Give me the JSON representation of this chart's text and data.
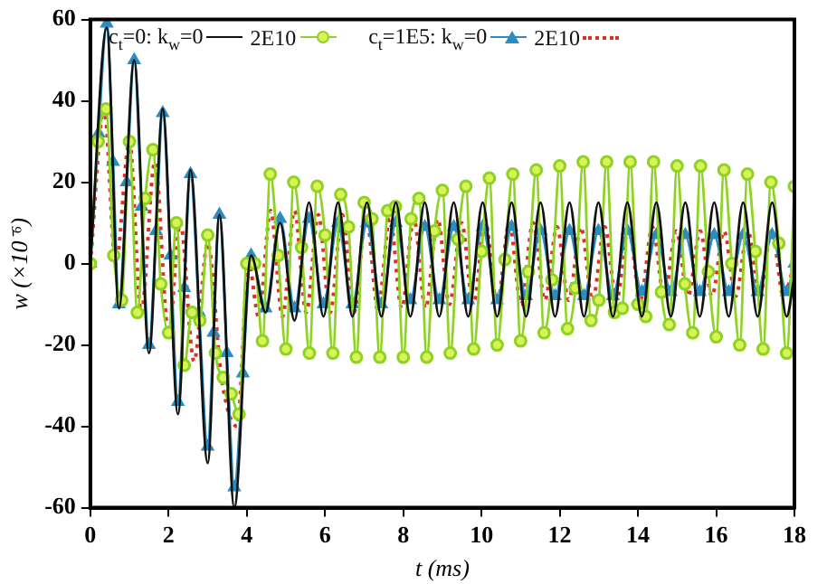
{
  "chart_data": {
    "type": "line",
    "xlabel": "t (ms)",
    "ylabel": "w (×10⁻⁶)",
    "xlim": [
      0,
      18
    ],
    "xticks": [
      0,
      2,
      4,
      6,
      8,
      10,
      12,
      14,
      16,
      18
    ],
    "ylim": [
      -60,
      60
    ],
    "yticks": [
      -60,
      -40,
      -20,
      0,
      20,
      40,
      60
    ],
    "grid": false,
    "legend": "top",
    "series": [
      {
        "name": "c$_{t}$=0: k$_{w}$=0",
        "color": "#111111",
        "marker": "none",
        "line_style": "solid",
        "x": [
          0,
          0.42,
          0.73,
          1.12,
          1.5,
          1.85,
          2.24,
          2.56,
          3.0,
          3.3,
          3.68,
          4.11,
          4.48,
          4.85,
          5.22,
          5.59,
          5.96,
          6.33,
          6.7,
          7.07,
          7.44,
          7.81,
          8.18,
          8.55,
          8.92,
          9.29,
          9.66,
          10.03,
          10.4,
          10.77,
          11.14,
          11.51,
          11.88,
          12.25,
          12.62,
          12.99,
          13.36,
          13.73,
          14.1,
          14.47,
          14.84,
          15.21,
          15.58,
          15.95,
          16.32,
          16.69,
          17.06,
          17.43,
          17.8,
          18
        ],
        "values": [
          0,
          58,
          -11,
          50,
          -22,
          38,
          -37,
          23,
          -49,
          12,
          -60,
          2,
          -12,
          10,
          -14,
          15,
          -13,
          15,
          -13,
          15,
          -13,
          15,
          -13,
          15,
          -13,
          15,
          -13,
          15,
          -13,
          15,
          -13,
          15,
          -13,
          15,
          -13,
          15,
          -13,
          15,
          -13,
          15,
          -13,
          15,
          -13,
          15,
          -13,
          15,
          -13,
          15,
          -13,
          -3
        ]
      },
      {
        "name": "2E10",
        "color": "#8ed321",
        "marker": "circle",
        "line_style": "solid",
        "x": [
          0,
          0.2,
          0.4,
          0.6,
          0.8,
          1.0,
          1.2,
          1.4,
          1.6,
          1.8,
          2.0,
          2.2,
          2.4,
          2.6,
          2.8,
          3.0,
          3.2,
          3.4,
          3.6,
          3.8,
          4.0,
          4.2,
          4.4,
          4.6,
          4.8,
          5.0,
          5.2,
          5.4,
          5.6,
          5.8,
          6.0,
          6.2,
          6.4,
          6.6,
          6.8,
          7.0,
          7.2,
          7.4,
          7.6,
          7.8,
          8.0,
          8.2,
          8.4,
          8.6,
          8.8,
          9.0,
          9.2,
          9.4,
          9.6,
          9.8,
          10.0,
          10.2,
          10.4,
          10.6,
          10.8,
          11.0,
          11.2,
          11.4,
          11.6,
          11.8,
          12.0,
          12.2,
          12.4,
          12.6,
          12.8,
          13.0,
          13.2,
          13.4,
          13.6,
          13.8,
          14.0,
          14.2,
          14.4,
          14.6,
          14.8,
          15.0,
          15.2,
          15.4,
          15.6,
          15.8,
          16.0,
          16.2,
          16.4,
          16.6,
          16.8,
          17.0,
          17.2,
          17.4,
          17.6,
          17.8,
          18.0
        ],
        "values": [
          0,
          30,
          38,
          2,
          -9,
          30,
          -12,
          16,
          28,
          -5,
          -17,
          10,
          -25,
          -12,
          -14,
          7,
          -22,
          -28,
          -32,
          -37,
          0,
          0,
          -19,
          22,
          2,
          -21,
          20,
          4,
          -22,
          19,
          7,
          -22,
          17,
          9,
          -23,
          15,
          11,
          -23,
          13,
          14,
          -23,
          11,
          16,
          -23,
          8,
          18,
          -22,
          6,
          19,
          -21,
          3,
          21,
          -20,
          1,
          22,
          -19,
          -2,
          23,
          -17,
          -4,
          24,
          -16,
          -6,
          25,
          -14,
          -9,
          25,
          -12,
          -11,
          25,
          -10,
          -13,
          25,
          -7,
          -15,
          24,
          -5,
          -17,
          24,
          -2,
          -18,
          23,
          0,
          -20,
          22,
          3,
          -21,
          20,
          5,
          -22,
          19
        ]
      },
      {
        "name": "c$_{t}$=1E5: k$_{w}$=0",
        "color": "#2a8cc0",
        "marker": "triangle",
        "line_style": "solid",
        "x": [
          0,
          0.21,
          0.42,
          0.58,
          0.73,
          0.93,
          1.12,
          1.31,
          1.5,
          1.68,
          1.85,
          2.05,
          2.24,
          2.4,
          2.56,
          2.78,
          3.0,
          3.15,
          3.3,
          3.49,
          3.68,
          3.9,
          4.11,
          4.48,
          4.85,
          5.22,
          5.59,
          5.96,
          6.33,
          6.7,
          7.07,
          7.44,
          7.81,
          8.18,
          8.55,
          8.92,
          9.29,
          9.66,
          10.03,
          10.4,
          10.77,
          11.14,
          11.51,
          11.88,
          12.25,
          12.62,
          12.99,
          13.36,
          13.73,
          14.1,
          14.47,
          14.84,
          15.21,
          15.58,
          15.95,
          16.32,
          16.69,
          17.06,
          17.43,
          17.8,
          18
        ],
        "values": [
          0,
          32,
          59,
          25,
          -10,
          20,
          50,
          14,
          -20,
          8,
          37,
          2,
          -34,
          -6,
          22,
          -12,
          -45,
          -17,
          12,
          -22,
          -55,
          -27,
          2,
          -11,
          11,
          -11,
          11,
          -10,
          10,
          -10,
          10,
          -10,
          10,
          -9,
          9,
          -9,
          9,
          -9,
          9,
          -9,
          9,
          -8,
          8,
          -8,
          8,
          -8,
          8,
          -8,
          8,
          -7,
          7,
          -7,
          7,
          -7,
          7,
          -7,
          7,
          -7,
          7,
          -7,
          0
        ]
      },
      {
        "name": "2E10",
        "color": "#e03020",
        "marker": "none",
        "line_style": "dotted",
        "x": [
          0,
          0.35,
          0.65,
          1.0,
          1.3,
          1.65,
          2.0,
          2.3,
          2.65,
          3.0,
          3.35,
          3.75,
          4.05,
          4.3,
          4.61,
          4.91,
          5.22,
          5.52,
          5.83,
          6.13,
          6.44,
          6.74,
          7.05,
          7.35,
          7.66,
          7.96,
          8.27,
          8.57,
          8.88,
          9.18,
          9.49,
          9.79,
          10.1,
          10.4,
          10.71,
          11.01,
          11.32,
          11.62,
          11.93,
          12.23,
          12.54,
          12.84,
          13.15,
          13.45,
          13.76,
          14.06,
          14.37,
          14.67,
          14.98,
          15.28,
          15.59,
          15.89,
          16.2,
          16.5,
          16.81,
          17.11,
          17.42,
          17.72,
          18
        ],
        "values": [
          0,
          38,
          0,
          30,
          -12,
          25,
          -17,
          10,
          -24,
          5,
          -28,
          -40,
          0,
          -13,
          13,
          -13,
          13,
          -12,
          12,
          -12,
          12,
          -12,
          12,
          -11,
          11,
          -11,
          11,
          -11,
          11,
          -10,
          10,
          -10,
          10,
          -10,
          10,
          -10,
          10,
          -9,
          9,
          -9,
          9,
          -9,
          9,
          -9,
          9,
          -9,
          9,
          -8,
          8,
          -8,
          8,
          -8,
          8,
          -8,
          8,
          -8,
          8,
          -8,
          0
        ]
      }
    ]
  }
}
